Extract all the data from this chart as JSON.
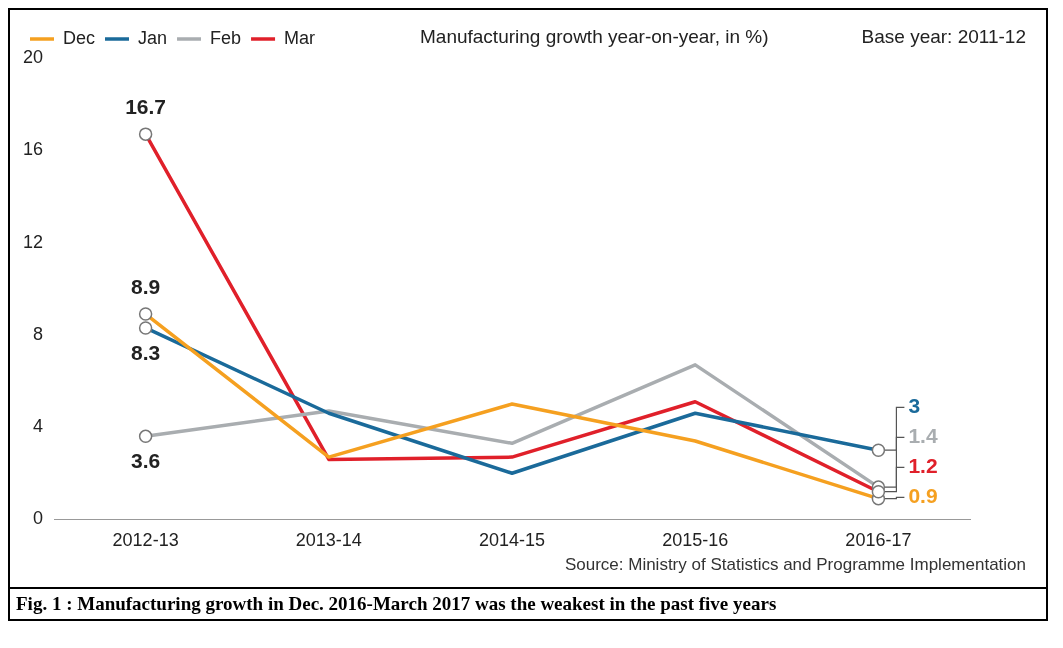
{
  "chart_data": {
    "type": "line",
    "title": "Manufacturing growth year-on-year, in %)",
    "subtitle": "Base year: 2011-12",
    "categories": [
      "2012-13",
      "2013-14",
      "2014-15",
      "2015-16",
      "2016-17"
    ],
    "series": [
      {
        "name": "Dec",
        "color": "#f5a020",
        "values": [
          8.9,
          2.7,
          5.0,
          3.4,
          0.9
        ],
        "value_labels": [
          "8.9",
          null,
          null,
          null,
          "0.9"
        ]
      },
      {
        "name": "Jan",
        "color": "#1a6a9a",
        "values": [
          8.3,
          4.6,
          2.0,
          4.6,
          3
        ],
        "value_labels": [
          "8.3",
          null,
          null,
          null,
          "3"
        ]
      },
      {
        "name": "Feb",
        "color": "#a9adb0",
        "values": [
          3.6,
          4.7,
          3.3,
          6.7,
          1.4
        ],
        "value_labels": [
          "3.6",
          null,
          null,
          null,
          "1.4"
        ]
      },
      {
        "name": "Mar",
        "color": "#e0202a",
        "values": [
          16.7,
          2.6,
          2.7,
          5.1,
          1.2
        ],
        "value_labels": [
          "16.7",
          null,
          null,
          null,
          "1.2"
        ]
      }
    ],
    "ylim": [
      0,
      20
    ],
    "yticks": [
      0,
      4,
      8,
      12,
      16,
      20
    ],
    "grid": false,
    "legend": "top left",
    "line_style": "solid",
    "annotations": [
      "Source: Ministry of Statistics and Programme Implementation",
      "Fig. 1 : Manufacturing growth in Dec. 2016-March 2017 was the weakest in the past five years"
    ]
  }
}
